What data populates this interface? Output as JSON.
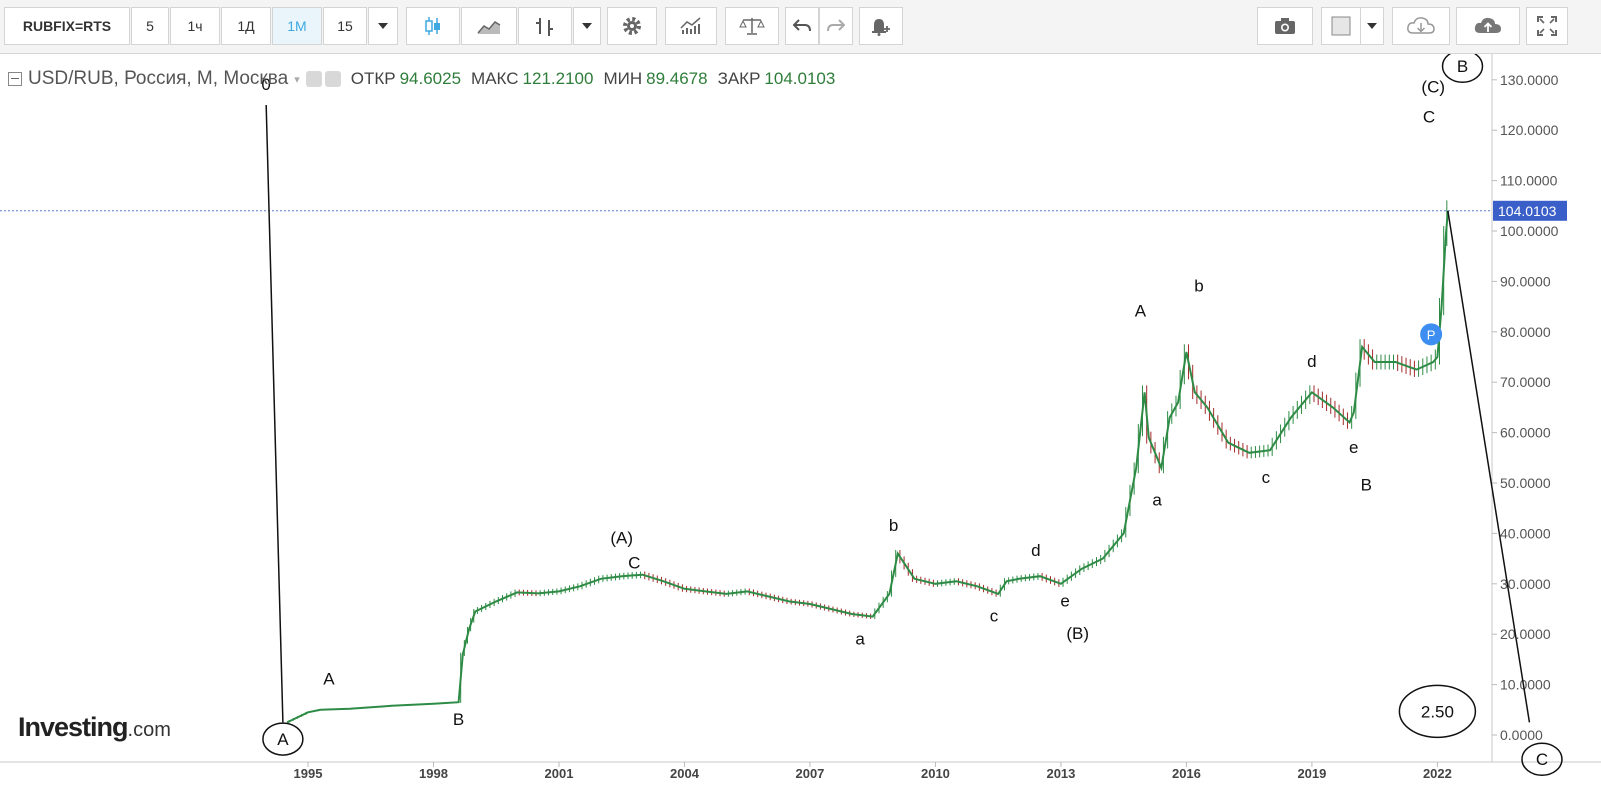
{
  "toolbar": {
    "symbol": "RUBFIX=RTS",
    "intervals": [
      "5",
      "1ч",
      "1Д",
      "1М",
      "15"
    ],
    "active_interval": "1М"
  },
  "legend": {
    "instrument": "USD/RUB, Россия, M, Москва",
    "open_label": "ОТКР",
    "open_value": "94.6025",
    "high_label": "МАКС",
    "high_value": "121.2100",
    "low_label": "МИН",
    "low_value": "89.4678",
    "close_label": "ЗАКР",
    "close_value": "104.0103"
  },
  "watermark": {
    "brand": "Investing",
    "suffix": ".com"
  },
  "colors": {
    "up": "#2e8b45",
    "down": "#a52a2a",
    "axis_text": "#555555",
    "price_tag": "#3a5fc8",
    "dotted_line": "#5a78c8",
    "marker": "#3d8ef0"
  },
  "chart_data": {
    "type": "line",
    "x_ticks": [
      "1995",
      "1998",
      "2001",
      "2004",
      "2007",
      "2010",
      "2013",
      "2016",
      "2019",
      "2022"
    ],
    "y_ticks": [
      "0.0000",
      "10.0000",
      "20.0000",
      "30.0000",
      "40.0000",
      "50.0000",
      "60.0000",
      "70.0000",
      "80.0000",
      "90.0000",
      "100.0000",
      "110.0000",
      "120.0000",
      "130.0000"
    ],
    "ylim": [
      0,
      135
    ],
    "last_price": "104.0103",
    "marker_label": "P",
    "series": [
      {
        "x": [
          1994.5,
          1995.0,
          1995.3,
          1996.0,
          1997.0,
          1998.0,
          1998.6,
          1998.7,
          1998.85,
          1999.0,
          1999.5,
          2000.0,
          2000.5,
          2001.0,
          2001.5,
          2002.0,
          2002.5,
          2003.0,
          2003.5,
          2004.0,
          2004.5,
          2005.0,
          2005.5,
          2006.0,
          2006.5,
          2007.0,
          2007.5,
          2008.0,
          2008.5,
          2008.9,
          2009.1,
          2009.5,
          2010.0,
          2010.5,
          2011.0,
          2011.5,
          2011.7,
          2012.0,
          2012.5,
          2013.0,
          2013.5,
          2014.0,
          2014.5,
          2014.8,
          2015.0,
          2015.1,
          2015.4,
          2015.6,
          2015.8,
          2016.0,
          2016.2,
          2016.5,
          2017.0,
          2017.5,
          2018.0,
          2018.5,
          2019.0,
          2019.5,
          2019.9,
          2020.0,
          2020.2,
          2020.5,
          2021.0,
          2021.5,
          2021.9,
          2022.0,
          2022.1,
          2022.2,
          2022.25
        ],
        "values": [
          2.5,
          4.5,
          5.0,
          5.2,
          5.8,
          6.2,
          6.5,
          16.0,
          21.0,
          24.5,
          26.5,
          28.3,
          28.1,
          28.5,
          29.5,
          31.0,
          31.5,
          31.8,
          30.5,
          29.0,
          28.5,
          28.0,
          28.5,
          27.5,
          26.5,
          26.0,
          25.0,
          24.0,
          23.5,
          28.0,
          36.0,
          31.0,
          30.0,
          30.5,
          29.5,
          28.0,
          30.5,
          31.0,
          31.5,
          30.0,
          33.0,
          35.0,
          40.0,
          53.0,
          68.0,
          59.0,
          53.0,
          63.0,
          66.0,
          76.0,
          68.0,
          65.0,
          58.0,
          56.0,
          56.5,
          63.0,
          68.0,
          65.0,
          62.0,
          64.0,
          77.0,
          74.0,
          74.0,
          72.5,
          74.0,
          75.0,
          85.0,
          99.0,
          104.0
        ]
      }
    ],
    "annotations": [
      {
        "text": "0",
        "x": 1994.0,
        "y": 128.0
      },
      {
        "text": "A",
        "x": 1994.4,
        "y": -2.0,
        "circled": true
      },
      {
        "text": "A",
        "x": 1995.5,
        "y": 10.0
      },
      {
        "text": "B",
        "x": 1998.6,
        "y": 2.0
      },
      {
        "text": "(A)",
        "x": 2002.5,
        "y": 38.0
      },
      {
        "text": "C",
        "x": 2002.8,
        "y": 33.0
      },
      {
        "text": "a",
        "x": 2008.2,
        "y": 18.0
      },
      {
        "text": "b",
        "x": 2009.0,
        "y": 40.5
      },
      {
        "text": "c",
        "x": 2011.4,
        "y": 22.5
      },
      {
        "text": "d",
        "x": 2012.4,
        "y": 35.5
      },
      {
        "text": "e",
        "x": 2013.1,
        "y": 25.5
      },
      {
        "text": "(B)",
        "x": 2013.4,
        "y": 19.0
      },
      {
        "text": "A",
        "x": 2014.9,
        "y": 83.0
      },
      {
        "text": "a",
        "x": 2015.3,
        "y": 45.5
      },
      {
        "text": "b",
        "x": 2016.3,
        "y": 88.0
      },
      {
        "text": "c",
        "x": 2017.9,
        "y": 50.0
      },
      {
        "text": "d",
        "x": 2019.0,
        "y": 73.0
      },
      {
        "text": "e",
        "x": 2020.0,
        "y": 56.0
      },
      {
        "text": "B",
        "x": 2020.3,
        "y": 48.5
      },
      {
        "text": "C",
        "x": 2021.8,
        "y": 121.5
      },
      {
        "text": "(C)",
        "x": 2021.9,
        "y": 127.5
      },
      {
        "text": "B",
        "x": 2022.6,
        "y": 131.5,
        "circled": true
      },
      {
        "text": "2.50",
        "x": 2022.0,
        "y": 3.5,
        "circled": true
      },
      {
        "text": "C",
        "x": 2024.5,
        "y": -6.0,
        "circled": true
      }
    ],
    "projection_lines": [
      {
        "from": [
          1994.0,
          125.0
        ],
        "to": [
          1994.4,
          2.5
        ]
      },
      {
        "from": [
          2022.25,
          104.0
        ],
        "to": [
          2024.2,
          2.5
        ]
      }
    ],
    "grid": false,
    "legend_position": "top-left"
  }
}
